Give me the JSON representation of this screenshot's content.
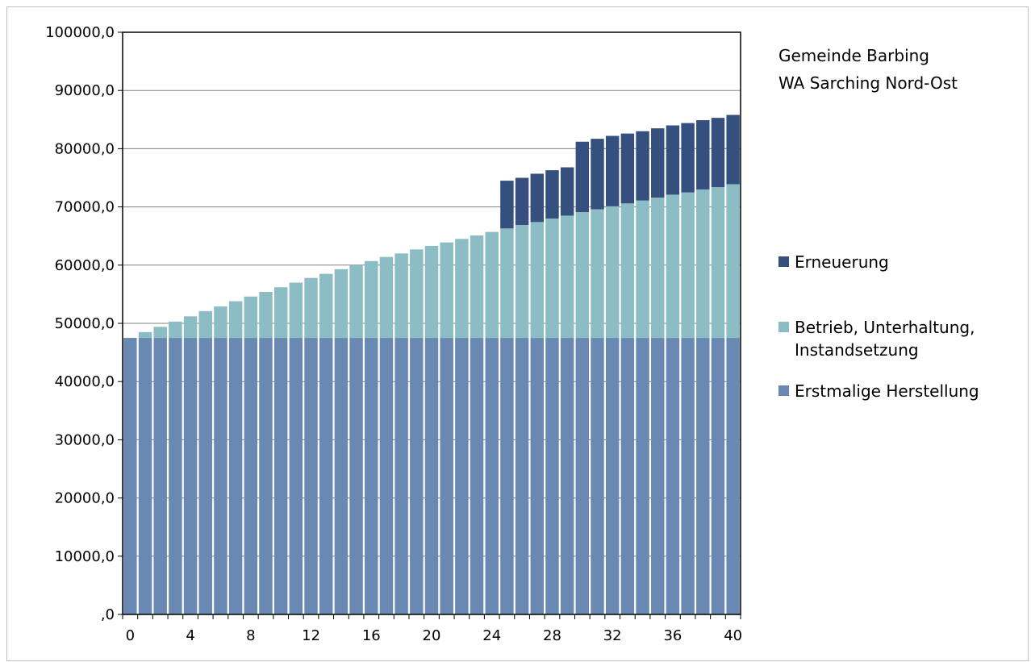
{
  "chart_data": {
    "type": "bar",
    "stacked": true,
    "title_lines": [
      "Gemeinde Barbing",
      "WA Sarching Nord-Ost"
    ],
    "xlabel": "",
    "ylabel": "",
    "ylim": [
      0,
      100000
    ],
    "yticks": [
      ",0",
      "10000,0",
      "20000,0",
      "30000,0",
      "40000,0",
      "50000,0",
      "60000,0",
      "70000,0",
      "80000,0",
      "90000,0",
      "100000,0"
    ],
    "xticks": [
      "0",
      "4",
      "8",
      "12",
      "16",
      "20",
      "24",
      "28",
      "32",
      "36",
      "40"
    ],
    "x": [
      0,
      1,
      2,
      3,
      4,
      5,
      6,
      7,
      8,
      9,
      10,
      11,
      12,
      13,
      14,
      15,
      16,
      17,
      18,
      19,
      20,
      21,
      22,
      23,
      24,
      25,
      26,
      27,
      28,
      29,
      30,
      31,
      32,
      33,
      34,
      35,
      36,
      37,
      38,
      39,
      40
    ],
    "grid": true,
    "legend_position": "right",
    "series": [
      {
        "name": "Erstmalige Herstellung",
        "color": "#6a89b2",
        "values": [
          47500,
          47500,
          47500,
          47500,
          47500,
          47500,
          47500,
          47500,
          47500,
          47500,
          47500,
          47500,
          47500,
          47500,
          47500,
          47500,
          47500,
          47500,
          47500,
          47500,
          47500,
          47500,
          47500,
          47500,
          47500,
          47500,
          47500,
          47500,
          47500,
          47500,
          47500,
          47500,
          47500,
          47500,
          47500,
          47500,
          47500,
          47500,
          47500,
          47500,
          47500
        ]
      },
      {
        "name": "Betrieb, Unterhaltung, Instandsetzung",
        "color": "#8cbcc4",
        "values": [
          0,
          1000,
          1900,
          2800,
          3700,
          4600,
          5400,
          6300,
          7100,
          7900,
          8700,
          9500,
          10300,
          11000,
          11800,
          12500,
          13200,
          13900,
          14500,
          15200,
          15800,
          16400,
          17000,
          17600,
          18200,
          18800,
          19400,
          19900,
          20500,
          21000,
          21600,
          22100,
          22600,
          23100,
          23600,
          24100,
          24600,
          25000,
          25500,
          25900,
          26400
        ]
      },
      {
        "name": "Erneuerung",
        "color": "#354f7f",
        "values": [
          0,
          0,
          0,
          0,
          0,
          0,
          0,
          0,
          0,
          0,
          0,
          0,
          0,
          0,
          0,
          0,
          0,
          0,
          0,
          0,
          0,
          0,
          0,
          0,
          0,
          8200,
          8100,
          8300,
          8300,
          8300,
          12100,
          12100,
          12100,
          12000,
          11900,
          11900,
          11900,
          11900,
          11900,
          11900,
          11900
        ]
      }
    ]
  }
}
